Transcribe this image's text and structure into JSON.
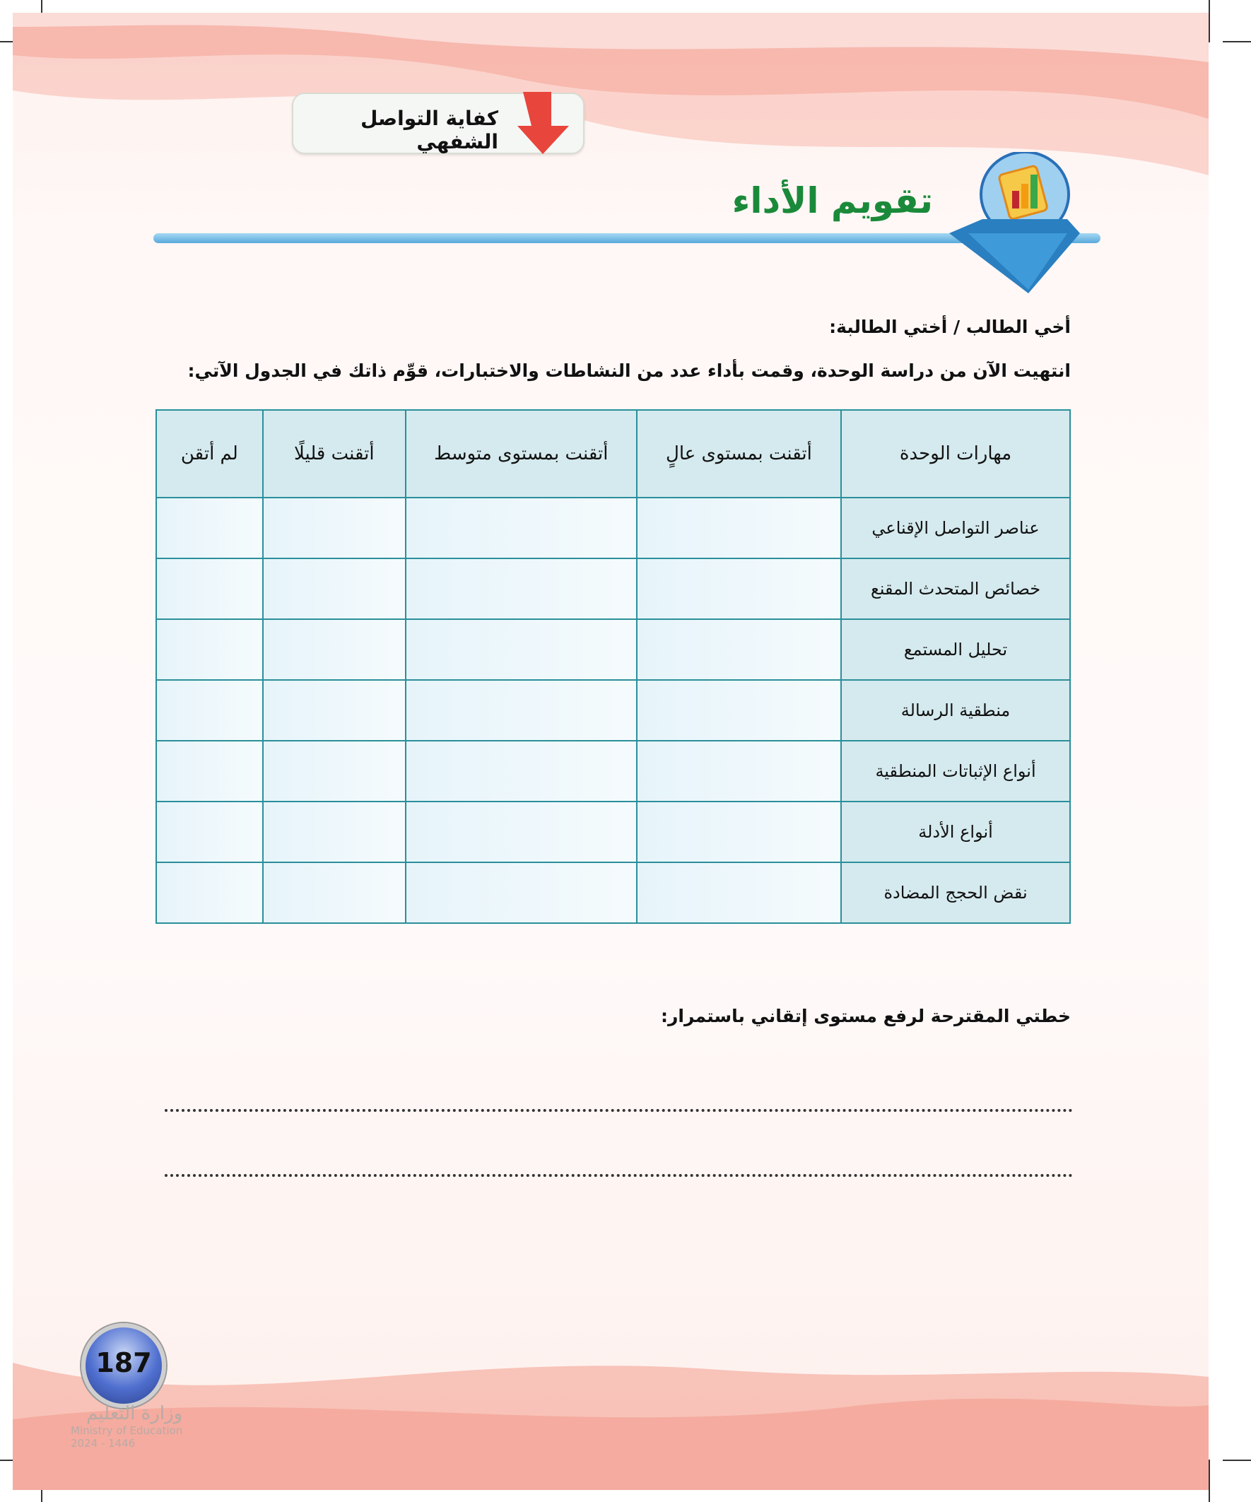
{
  "header": {
    "tab_label": "كفاية التواصل الشفهي",
    "section_title": "تقويم الأداء",
    "emblem_icon": "clipboard-chart-icon"
  },
  "intro": {
    "greeting": "أخي الطالب / أختي الطالبة:",
    "instruction": "انتهيت الآن من دراسة الوحدة، وقمت بأداء عدد من النشاطات والاختبارات، قوِّم ذاتك في الجدول الآتي:"
  },
  "table": {
    "headers": [
      "مهارات الوحدة",
      "أتقنت بمستوى عالٍ",
      "أتقنت بمستوى متوسط",
      "أتقنت قليلًا",
      "لم أتقن"
    ],
    "rows": [
      "عناصر التواصل الإقناعي",
      "خصائص المتحدث المقنع",
      "تحليل المستمع",
      "منطقية الرسالة",
      "أنواع الإثباتات المنطقية",
      "أنواع الأدلة",
      "نقض الحجج المضادة"
    ]
  },
  "plan": {
    "heading": "خطتي المقترحة لرفع مستوى إتقاني باستمرار:"
  },
  "footer": {
    "page_number": "187",
    "ministry_ar": "وزارة التعليم",
    "ministry_en": "Ministry of Education",
    "year": "2024 - 1446"
  },
  "colors": {
    "title_green": "#1a8a3a",
    "table_border": "#2a8f9a",
    "header_fill": "#d5eaee",
    "arrow_red": "#e8453c"
  }
}
